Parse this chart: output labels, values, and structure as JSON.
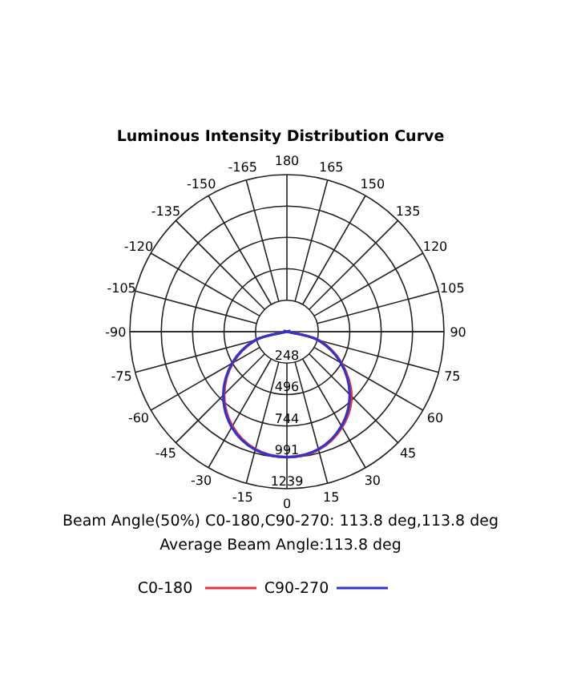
{
  "chart_data": {
    "type": "radar",
    "title": "Luminous Intensity Distribution Curve",
    "categories": [
      "180",
      "165",
      "150",
      "135",
      "120",
      "105",
      "90",
      "75",
      "60",
      "45",
      "30",
      "15",
      "0",
      "-15",
      "-30",
      "-45",
      "-60",
      "-75",
      "-90",
      "-105",
      "-120",
      "-135",
      "-150",
      "-165"
    ],
    "series": [
      {
        "name": "C0-180",
        "color": "#dd3344",
        "values": [
          0,
          0,
          0,
          0,
          0,
          0,
          0,
          260,
          500,
          720,
          870,
          965,
          990,
          960,
          860,
          700,
          490,
          250,
          0,
          0,
          0,
          0,
          0,
          0
        ]
      },
      {
        "name": "C90-270",
        "color": "#3333cc",
        "values": [
          0,
          0,
          0,
          0,
          0,
          0,
          0,
          250,
          490,
          700,
          860,
          960,
          990,
          965,
          870,
          710,
          500,
          260,
          0,
          0,
          0,
          0,
          0,
          0
        ]
      }
    ],
    "ylim": [
      0,
      1239
    ],
    "yticks": [
      248,
      496,
      744,
      991,
      1239
    ],
    "grid": true,
    "legend": "bottom",
    "annotations": [
      "Beam Angle(50%) C0-180,C90-270: 113.8 deg,113.8 deg",
      "Average Beam Angle:113.8 deg"
    ]
  }
}
